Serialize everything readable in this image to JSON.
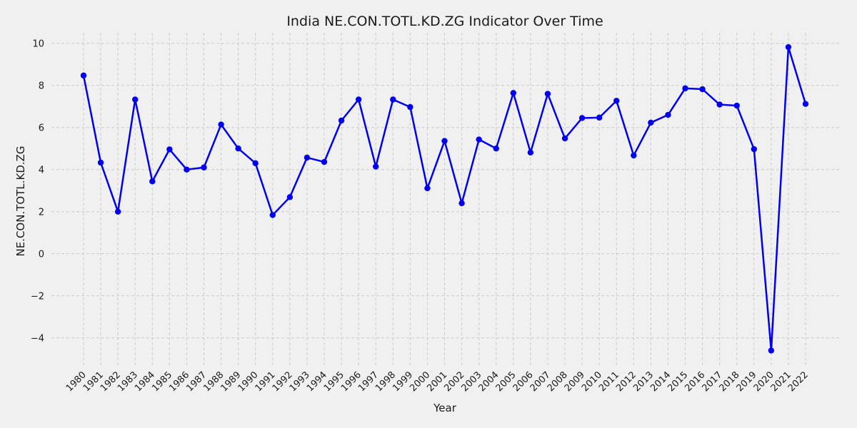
{
  "chart_data": {
    "type": "line",
    "title": "India NE.CON.TOTL.KD.ZG Indicator Over Time",
    "xlabel": "Year",
    "ylabel": "NE.CON.TOTL.KD.ZG",
    "ylim": [
      -5.3,
      10.5
    ],
    "yticks": [
      -4,
      -2,
      0,
      2,
      4,
      6,
      8,
      10
    ],
    "grid": true,
    "line_color": "#0000ee",
    "categories": [
      "1980",
      "1981",
      "1982",
      "1983",
      "1984",
      "1985",
      "1986",
      "1987",
      "1988",
      "1989",
      "1990",
      "1991",
      "1992",
      "1993",
      "1994",
      "1995",
      "1996",
      "1997",
      "1998",
      "1999",
      "2000",
      "2001",
      "2002",
      "2003",
      "2004",
      "2005",
      "2006",
      "2007",
      "2008",
      "2009",
      "2010",
      "2011",
      "2012",
      "2013",
      "2014",
      "2015",
      "2016",
      "2017",
      "2018",
      "2019",
      "2020",
      "2021",
      "2022"
    ],
    "values": [
      8.47,
      4.33,
      2.0,
      7.33,
      3.44,
      4.96,
      4.0,
      4.1,
      6.14,
      5.0,
      4.3,
      1.84,
      2.69,
      4.57,
      4.36,
      6.33,
      7.33,
      4.14,
      7.33,
      6.97,
      3.11,
      5.36,
      2.4,
      5.43,
      5.0,
      7.64,
      4.81,
      7.6,
      5.48,
      6.45,
      6.47,
      7.27,
      4.67,
      6.23,
      6.6,
      7.86,
      7.82,
      7.09,
      7.04,
      4.97,
      -4.6,
      9.82,
      7.12
    ]
  }
}
